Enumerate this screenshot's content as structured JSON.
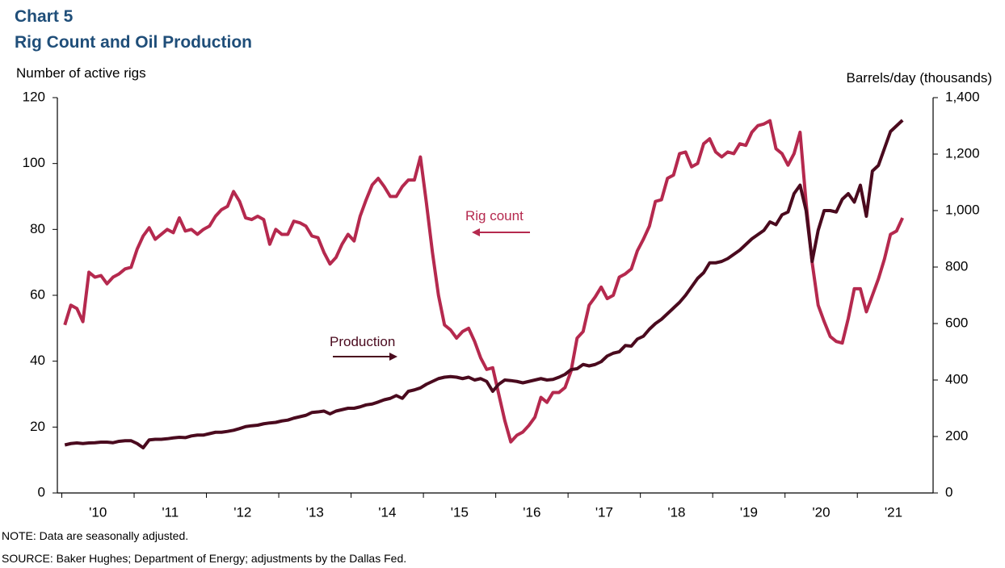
{
  "chart_data": {
    "type": "line",
    "title": "Chart 5",
    "subtitle": "Rig Count and Oil Production",
    "y_label": "Number  of active rigs",
    "y2_label": "Barrels/day (thousands)",
    "note": "NOTE:  Data are seasonally adjusted.",
    "source": "SOURCE:  Baker Hughes; Department of Energy; adjustments  by the Dallas Fed.",
    "annotations": [
      "Rig count",
      "Production"
    ],
    "categories": [
      null,
      null,
      null,
      null,
      null,
      "'10",
      null,
      null,
      null,
      null,
      null,
      null,
      null,
      null,
      null,
      null,
      null,
      "'11",
      null,
      null,
      null,
      null,
      null,
      null,
      null,
      null,
      null,
      null,
      null,
      "'12",
      null,
      null,
      null,
      null,
      null,
      null,
      null,
      null,
      null,
      null,
      null,
      "'13",
      null,
      null,
      null,
      null,
      null,
      null,
      null,
      null,
      null,
      null,
      null,
      "'14",
      null,
      null,
      null,
      null,
      null,
      null,
      null,
      null,
      null,
      null,
      null,
      "'15",
      null,
      null,
      null,
      null,
      null,
      null,
      null,
      null,
      null,
      null,
      null,
      "'16",
      null,
      null,
      null,
      null,
      null,
      null,
      null,
      null,
      null,
      null,
      null,
      "'17",
      null,
      null,
      null,
      null,
      null,
      null,
      null,
      null,
      null,
      null,
      null,
      "'18",
      null,
      null,
      null,
      null,
      null,
      null,
      null,
      null,
      null,
      null,
      null,
      "'19",
      null,
      null,
      null,
      null,
      null,
      null,
      null,
      null,
      null,
      null,
      null,
      "'20",
      null,
      null,
      null,
      null,
      null,
      null,
      null,
      null,
      null,
      null,
      null,
      "'21",
      null,
      null
    ],
    "series": [
      {
        "name": "Rig count",
        "color": "#b5294e",
        "axis": "y",
        "values": [
          51,
          57,
          56,
          52,
          67,
          65.5,
          66,
          63.5,
          65.5,
          66.5,
          68,
          68.5,
          74,
          78,
          80.5,
          77,
          78.5,
          80,
          79,
          83.5,
          79.5,
          80,
          78.5,
          80,
          81,
          84,
          86,
          87,
          91.5,
          88.5,
          83.5,
          83,
          84,
          83,
          75.5,
          80,
          78.5,
          78.5,
          82.5,
          82,
          81,
          78,
          77.5,
          73,
          69.5,
          71.5,
          75.5,
          78.5,
          76.5,
          84,
          89,
          93.5,
          95.5,
          93,
          90,
          90,
          93,
          95,
          95,
          102,
          88,
          73,
          60,
          51,
          49.5,
          47,
          49,
          50,
          46,
          41,
          37.5,
          38,
          30,
          22,
          15.5,
          17.5,
          18.5,
          20.5,
          23,
          29,
          27.5,
          30.5,
          30.5,
          32,
          37,
          47,
          49,
          57,
          59.5,
          62.5,
          59,
          60,
          65.5,
          66.5,
          68,
          73.5,
          77,
          81,
          88.5,
          89,
          95.5,
          96.5,
          103,
          103.5,
          99,
          100,
          106,
          107.5,
          103.5,
          102,
          103.5,
          103,
          106,
          105.5,
          109.5,
          111.5,
          112,
          113,
          104.5,
          103,
          99.5,
          103,
          109.5,
          88,
          70,
          57,
          52,
          47.5,
          46,
          45.5,
          53,
          62,
          62,
          55,
          60,
          65,
          71,
          78.5,
          79.5,
          83.5
        ]
      },
      {
        "name": "Production",
        "color": "#4a0a1e",
        "axis": "y2",
        "values": [
          170,
          175,
          177,
          175,
          177,
          178,
          180,
          180,
          178,
          183,
          185,
          185,
          175,
          160,
          188,
          190,
          190,
          192,
          195,
          197,
          196,
          202,
          205,
          205,
          210,
          215,
          215,
          218,
          222,
          228,
          235,
          238,
          240,
          245,
          248,
          250,
          255,
          258,
          265,
          270,
          275,
          285,
          287,
          290,
          280,
          290,
          295,
          300,
          300,
          305,
          312,
          315,
          322,
          330,
          335,
          345,
          335,
          360,
          365,
          372,
          385,
          395,
          405,
          410,
          412,
          410,
          405,
          410,
          400,
          405,
          395,
          360,
          385,
          400,
          398,
          395,
          390,
          395,
          400,
          405,
          400,
          402,
          410,
          420,
          437,
          440,
          455,
          450,
          455,
          465,
          485,
          495,
          500,
          522,
          520,
          545,
          555,
          580,
          600,
          615,
          635,
          655,
          675,
          700,
          730,
          760,
          780,
          815,
          815,
          820,
          830,
          845,
          860,
          880,
          900,
          915,
          930,
          960,
          950,
          985,
          995,
          1060,
          1090,
          1000,
          820,
          930,
          1000,
          1000,
          995,
          1040,
          1060,
          1030,
          1090,
          980,
          1140,
          1160,
          1220,
          1280,
          1300,
          1320
        ]
      }
    ],
    "ylim": [
      0,
      120
    ],
    "yticks": [
      0,
      20,
      40,
      60,
      80,
      100,
      120
    ],
    "y2lim": [
      0,
      1400
    ],
    "y2ticks": [
      0,
      200,
      400,
      600,
      800,
      {
        "value": 1000,
        "label": "1,000"
      },
      {
        "value": 1200,
        "label": "1,200"
      },
      {
        "value": 1400,
        "label": "1,400"
      }
    ],
    "grid": false
  }
}
